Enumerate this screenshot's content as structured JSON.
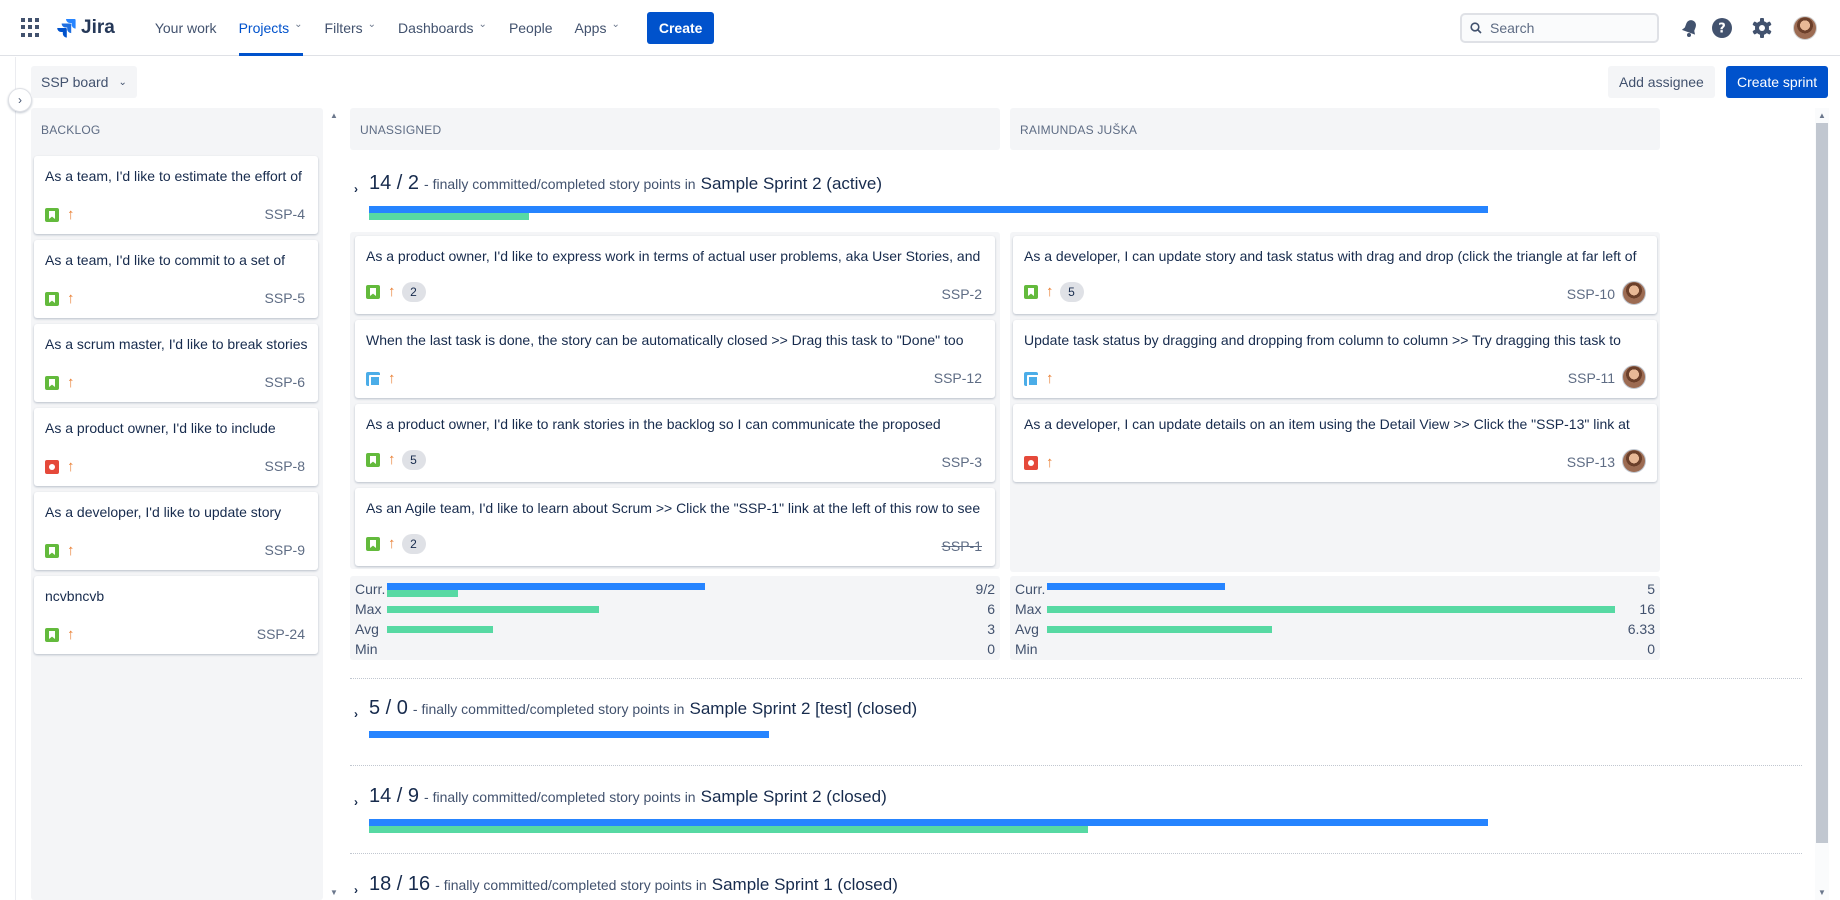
{
  "nav": {
    "logo": "Jira",
    "items": [
      {
        "label": "Your work",
        "chevron": false
      },
      {
        "label": "Projects",
        "chevron": true,
        "active": true
      },
      {
        "label": "Filters",
        "chevron": true
      },
      {
        "label": "Dashboards",
        "chevron": true
      },
      {
        "label": "People",
        "chevron": false
      },
      {
        "label": "Apps",
        "chevron": true
      }
    ],
    "create_label": "Create",
    "search_placeholder": "Search",
    "icons": [
      "notifications-icon",
      "help-icon",
      "settings-icon"
    ]
  },
  "board": {
    "select_label": "SSP board",
    "add_assignee_label": "Add assignee",
    "create_sprint_label": "Create sprint"
  },
  "backlog": {
    "header": "BACKLOG",
    "cards": [
      {
        "title": "As a team, I'd like to estimate the effort of",
        "type": "story",
        "key": "SSP-4"
      },
      {
        "title": "As a team, I'd like to commit to a set of",
        "type": "story",
        "key": "SSP-5"
      },
      {
        "title": "As a scrum master, I'd like to break stories",
        "type": "story",
        "key": "SSP-6"
      },
      {
        "title": "As a product owner, I'd like to include",
        "type": "bug",
        "key": "SSP-8"
      },
      {
        "title": "As a developer, I'd like to update story",
        "type": "story",
        "key": "SSP-9"
      },
      {
        "title": "ncvbncvb",
        "type": "story",
        "key": "SSP-24"
      }
    ]
  },
  "lanes": {
    "unassigned": "UNASSIGNED",
    "assignee": "RAIMUNDAS JUŠKA"
  },
  "sprints": [
    {
      "points": "14 / 2",
      "desc": "- finally committed/completed story points in",
      "name": "Sample Sprint 2 (active)",
      "committed": 14,
      "completed": 2
    },
    {
      "points": "5 / 0",
      "desc": "- finally committed/completed story points in",
      "name": "Sample Sprint 2 [test] (closed)",
      "committed": 5,
      "completed": 0
    },
    {
      "points": "14 / 9",
      "desc": "- finally committed/completed story points in",
      "name": "Sample Sprint 2 (closed)",
      "committed": 14,
      "completed": 9
    },
    {
      "points": "18 / 16",
      "desc": "- finally committed/completed story points in",
      "name": "Sample Sprint 1 (closed)",
      "committed": 18,
      "completed": 16
    }
  ],
  "unassigned_cards": [
    {
      "title": "As a product owner, I'd like to express work in terms of actual user problems, aka User Stories, and",
      "type": "story",
      "points": "2",
      "key": "SSP-2",
      "done": false
    },
    {
      "title": "When the last task is done, the story can be automatically closed >> Drag this task to \"Done\" too",
      "type": "task",
      "points": "",
      "key": "SSP-12",
      "done": false
    },
    {
      "title": "As a product owner, I'd like to rank stories in the backlog so I can communicate the proposed",
      "type": "story",
      "points": "5",
      "key": "SSP-3",
      "done": false
    },
    {
      "title": "As an Agile team, I'd like to learn about Scrum >> Click the \"SSP-1\" link at the left of this row to see",
      "type": "story",
      "points": "2",
      "key": "SSP-1",
      "done": true
    }
  ],
  "assignee_cards": [
    {
      "title": "As a developer, I can update story and task status with drag and drop (click the triangle at far left of",
      "type": "story",
      "points": "5",
      "key": "SSP-10"
    },
    {
      "title": "Update task status by dragging and dropping from column to column >> Try dragging this task to",
      "type": "task",
      "points": "",
      "key": "SSP-11"
    },
    {
      "title": "As a developer, I can update details on an item using the Detail View >> Click the \"SSP-13\" link at",
      "type": "bug",
      "points": "",
      "key": "SSP-13"
    }
  ],
  "stats_unassigned": {
    "curr_label": "Curr.",
    "curr_value": "9/2",
    "curr_committed": 9,
    "curr_completed": 2,
    "max_label": "Max",
    "max_value": "6",
    "max": 6,
    "avg_label": "Avg",
    "avg_value": "3",
    "avg": 3,
    "min_label": "Min",
    "min_value": "0",
    "min": 0
  },
  "stats_assignee": {
    "curr_label": "Curr.",
    "curr_value": "5",
    "curr_committed": 5,
    "curr_completed": 0,
    "max_label": "Max",
    "max_value": "16",
    "max": 16,
    "avg_label": "Avg",
    "avg_value": "6.33",
    "avg": 6.33,
    "min_label": "Min",
    "min_value": "0",
    "min": 0
  },
  "colors": {
    "primary": "#0052cc",
    "committed_bar": "#2684ff",
    "completed_bar": "#57d9a3",
    "story": "#63ba3c",
    "bug": "#e5493a",
    "task": "#4bade8"
  }
}
